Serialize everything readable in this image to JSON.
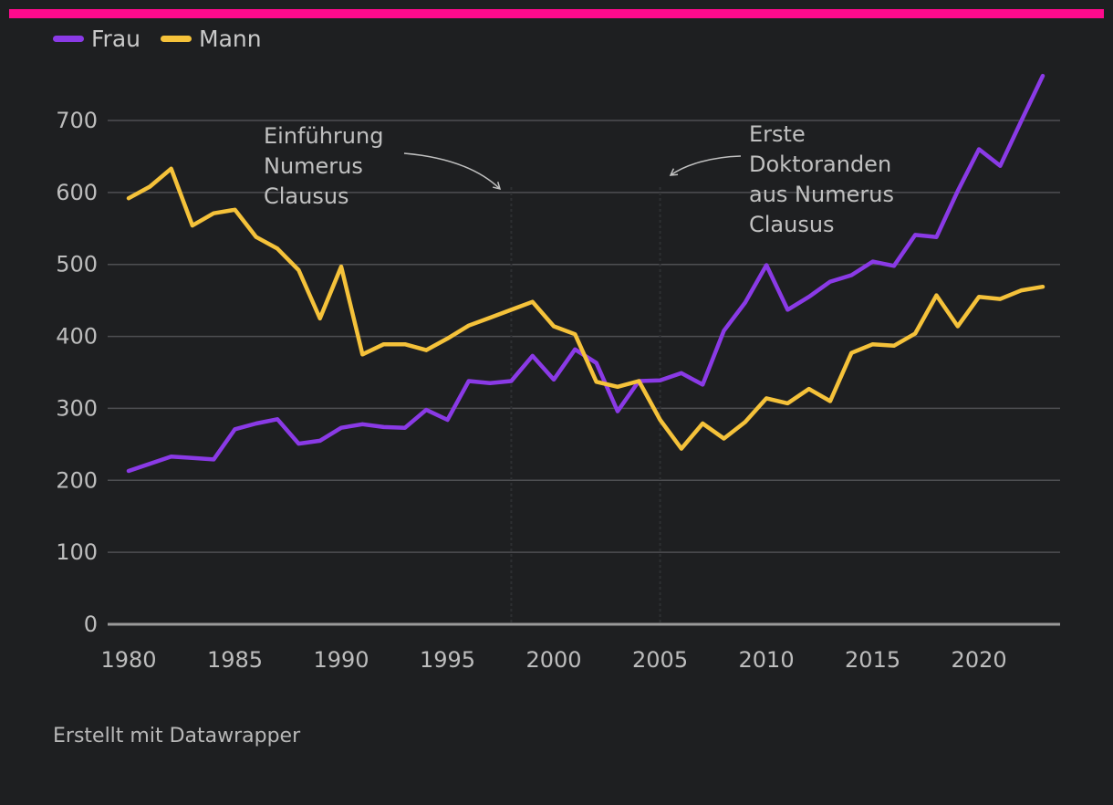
{
  "accent_bar_color": "#ff0a8d",
  "legend": [
    {
      "label": "Frau",
      "color": "#8a3ae6"
    },
    {
      "label": "Mann",
      "color": "#f5c23a"
    }
  ],
  "footer": "Erstellt mit Datawrapper",
  "chart_data": {
    "type": "line",
    "title": "",
    "xlabel": "",
    "ylabel": "",
    "xlim": [
      1980,
      2023
    ],
    "ylim": [
      0,
      760
    ],
    "x_ticks": [
      1980,
      1985,
      1990,
      1995,
      2000,
      2005,
      2010,
      2015,
      2020
    ],
    "y_ticks": [
      0,
      100,
      200,
      300,
      400,
      500,
      600,
      700
    ],
    "x": [
      1980,
      1981,
      1982,
      1983,
      1984,
      1985,
      1986,
      1987,
      1988,
      1989,
      1990,
      1991,
      1992,
      1993,
      1994,
      1995,
      1996,
      1997,
      1998,
      1999,
      2000,
      2001,
      2002,
      2003,
      2004,
      2005,
      2006,
      2007,
      2008,
      2009,
      2010,
      2011,
      2012,
      2013,
      2014,
      2015,
      2016,
      2017,
      2018,
      2019,
      2020,
      2021,
      2022,
      2023
    ],
    "series": [
      {
        "name": "Frau",
        "color": "#8a3ae6",
        "values": [
          213,
          223,
          233,
          231,
          229,
          271,
          279,
          285,
          251,
          255,
          273,
          278,
          274,
          273,
          298,
          284,
          338,
          335,
          338,
          373,
          340,
          382,
          363,
          296,
          338,
          339,
          349,
          333,
          408,
          447,
          499,
          437,
          455,
          476,
          485,
          504,
          498,
          541,
          538,
          602,
          660,
          637,
          700,
          762
        ]
      },
      {
        "name": "Mann",
        "color": "#f5c23a",
        "values": [
          592,
          608,
          633,
          554,
          571,
          576,
          538,
          522,
          492,
          425,
          497,
          375,
          389,
          389,
          381,
          397,
          415,
          426,
          437,
          448,
          414,
          403,
          337,
          330,
          338,
          284,
          244,
          279,
          258,
          281,
          314,
          307,
          327,
          310,
          377,
          389,
          387,
          404,
          457,
          414,
          455,
          452,
          464,
          469
        ]
      }
    ],
    "annotations": [
      {
        "year": 1998,
        "lines": [
          "Einführung",
          "Numerus",
          "Clausus"
        ]
      },
      {
        "year": 2005,
        "lines": [
          "Erste",
          "Doktoranden",
          "aus Numerus",
          "Clausus"
        ]
      }
    ]
  }
}
